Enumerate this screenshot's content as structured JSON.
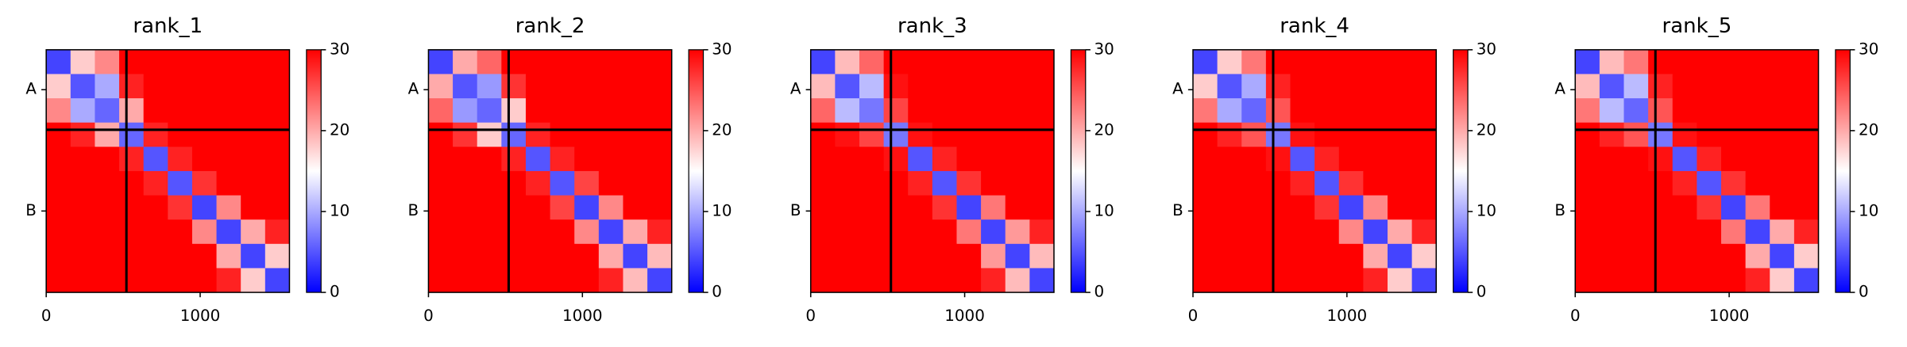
{
  "chart_data": [
    {
      "type": "heatmap",
      "title": "rank_1",
      "xlim": [
        0,
        1580
      ],
      "ylim": [
        0,
        1580
      ],
      "xticks": [
        0,
        1000
      ],
      "yticks": [
        {
          "value": 260,
          "label": "A"
        },
        {
          "value": 1050,
          "label": "B"
        }
      ],
      "boundaries": [
        521
      ],
      "colormap": [
        "#0000ff",
        "#ffffff",
        "#ff0000"
      ],
      "clim": [
        0,
        30
      ],
      "cticks": [
        0,
        10,
        20,
        30
      ],
      "matrix": [
        [
          4,
          18,
          22,
          30,
          30,
          30,
          30,
          30,
          30,
          30
        ],
        [
          18,
          5,
          10,
          28,
          30,
          30,
          30,
          30,
          30,
          30
        ],
        [
          22,
          10,
          6,
          20,
          30,
          30,
          30,
          30,
          30,
          30
        ],
        [
          30,
          28,
          20,
          6,
          28,
          30,
          30,
          30,
          30,
          30
        ],
        [
          30,
          30,
          30,
          28,
          5,
          28,
          30,
          30,
          30,
          30
        ],
        [
          30,
          30,
          30,
          30,
          28,
          5,
          27,
          30,
          30,
          30
        ],
        [
          30,
          30,
          30,
          30,
          30,
          27,
          4,
          22,
          30,
          30
        ],
        [
          30,
          30,
          30,
          30,
          30,
          30,
          22,
          4,
          20,
          28
        ],
        [
          30,
          30,
          30,
          30,
          30,
          30,
          30,
          20,
          4,
          18
        ],
        [
          30,
          30,
          30,
          30,
          30,
          30,
          30,
          28,
          18,
          4
        ]
      ]
    },
    {
      "type": "heatmap",
      "title": "rank_2",
      "xlim": [
        0,
        1580
      ],
      "ylim": [
        0,
        1580
      ],
      "xticks": [
        0,
        1000
      ],
      "yticks": [
        {
          "value": 260,
          "label": "A"
        },
        {
          "value": 1050,
          "label": "B"
        }
      ],
      "boundaries": [
        521
      ],
      "colormap": [
        "#0000ff",
        "#ffffff",
        "#ff0000"
      ],
      "clim": [
        0,
        30
      ],
      "cticks": [
        0,
        10,
        20,
        30
      ],
      "matrix": [
        [
          4,
          20,
          24,
          30,
          30,
          30,
          30,
          30,
          30,
          30
        ],
        [
          20,
          5,
          9,
          27,
          30,
          30,
          30,
          30,
          30,
          30
        ],
        [
          24,
          9,
          6,
          18,
          30,
          30,
          30,
          30,
          30,
          30
        ],
        [
          30,
          27,
          18,
          6,
          28,
          30,
          30,
          30,
          30,
          30
        ],
        [
          30,
          30,
          30,
          28,
          5,
          28,
          30,
          30,
          30,
          30
        ],
        [
          30,
          30,
          30,
          30,
          28,
          5,
          26,
          30,
          30,
          30
        ],
        [
          30,
          30,
          30,
          30,
          30,
          26,
          4,
          22,
          30,
          30
        ],
        [
          30,
          30,
          30,
          30,
          30,
          30,
          22,
          4,
          20,
          28
        ],
        [
          30,
          30,
          30,
          30,
          30,
          30,
          30,
          20,
          4,
          19
        ],
        [
          30,
          30,
          30,
          30,
          30,
          30,
          30,
          28,
          19,
          4
        ]
      ]
    },
    {
      "type": "heatmap",
      "title": "rank_3",
      "xlim": [
        0,
        1580
      ],
      "ylim": [
        0,
        1580
      ],
      "xticks": [
        0,
        1000
      ],
      "yticks": [
        {
          "value": 260,
          "label": "A"
        },
        {
          "value": 1050,
          "label": "B"
        }
      ],
      "boundaries": [
        521
      ],
      "colormap": [
        "#0000ff",
        "#ffffff",
        "#ff0000"
      ],
      "clim": [
        0,
        30
      ],
      "cticks": [
        0,
        10,
        20,
        30
      ],
      "matrix": [
        [
          4,
          19,
          24,
          30,
          30,
          30,
          30,
          30,
          30,
          30
        ],
        [
          19,
          5,
          11,
          29,
          30,
          30,
          30,
          30,
          30,
          30
        ],
        [
          24,
          11,
          7,
          26,
          30,
          30,
          30,
          30,
          30,
          30
        ],
        [
          30,
          29,
          26,
          7,
          29,
          30,
          30,
          30,
          30,
          30
        ],
        [
          30,
          30,
          30,
          29,
          5,
          28,
          30,
          30,
          30,
          30
        ],
        [
          30,
          30,
          30,
          30,
          28,
          5,
          27,
          30,
          30,
          30
        ],
        [
          30,
          30,
          30,
          30,
          30,
          27,
          4,
          23,
          30,
          30
        ],
        [
          30,
          30,
          30,
          30,
          30,
          30,
          23,
          4,
          21,
          28
        ],
        [
          30,
          30,
          30,
          30,
          30,
          30,
          30,
          21,
          4,
          19
        ],
        [
          30,
          30,
          30,
          30,
          30,
          30,
          30,
          28,
          19,
          4
        ]
      ]
    },
    {
      "type": "heatmap",
      "title": "rank_4",
      "xlim": [
        0,
        1580
      ],
      "ylim": [
        0,
        1580
      ],
      "xticks": [
        0,
        1000
      ],
      "yticks": [
        {
          "value": 260,
          "label": "A"
        },
        {
          "value": 1050,
          "label": "B"
        }
      ],
      "boundaries": [
        521
      ],
      "colormap": [
        "#0000ff",
        "#ffffff",
        "#ff0000"
      ],
      "clim": [
        0,
        30
      ],
      "cticks": [
        0,
        10,
        20,
        30
      ],
      "matrix": [
        [
          4,
          18,
          23,
          30,
          30,
          30,
          30,
          30,
          30,
          30
        ],
        [
          18,
          5,
          10,
          28,
          30,
          30,
          30,
          30,
          30,
          30
        ],
        [
          23,
          10,
          6,
          25,
          30,
          30,
          30,
          30,
          30,
          30
        ],
        [
          30,
          28,
          25,
          7,
          29,
          30,
          30,
          30,
          30,
          30
        ],
        [
          30,
          30,
          30,
          29,
          5,
          28,
          30,
          30,
          30,
          30
        ],
        [
          30,
          30,
          30,
          30,
          28,
          5,
          27,
          30,
          30,
          30
        ],
        [
          30,
          30,
          30,
          30,
          30,
          27,
          4,
          22,
          30,
          30
        ],
        [
          30,
          30,
          30,
          30,
          30,
          30,
          22,
          4,
          20,
          28
        ],
        [
          30,
          30,
          30,
          30,
          30,
          30,
          30,
          20,
          4,
          18
        ],
        [
          30,
          30,
          30,
          30,
          30,
          30,
          30,
          28,
          18,
          4
        ]
      ]
    },
    {
      "type": "heatmap",
      "title": "rank_5",
      "xlim": [
        0,
        1580
      ],
      "ylim": [
        0,
        1580
      ],
      "xticks": [
        0,
        1000
      ],
      "yticks": [
        {
          "value": 260,
          "label": "A"
        },
        {
          "value": 1050,
          "label": "B"
        }
      ],
      "boundaries": [
        521
      ],
      "colormap": [
        "#0000ff",
        "#ffffff",
        "#ff0000"
      ],
      "clim": [
        0,
        30
      ],
      "cticks": [
        0,
        10,
        20,
        30
      ],
      "matrix": [
        [
          4,
          19,
          23,
          30,
          30,
          30,
          30,
          30,
          30,
          30
        ],
        [
          19,
          5,
          11,
          28,
          30,
          30,
          30,
          30,
          30,
          30
        ],
        [
          23,
          11,
          6,
          25,
          30,
          30,
          30,
          30,
          30,
          30
        ],
        [
          30,
          28,
          25,
          7,
          29,
          30,
          30,
          30,
          30,
          30
        ],
        [
          30,
          30,
          30,
          29,
          5,
          28,
          30,
          30,
          30,
          30
        ],
        [
          30,
          30,
          30,
          30,
          28,
          5,
          27,
          30,
          30,
          30
        ],
        [
          30,
          30,
          30,
          30,
          30,
          27,
          4,
          23,
          30,
          30
        ],
        [
          30,
          30,
          30,
          30,
          30,
          30,
          23,
          4,
          20,
          28
        ],
        [
          30,
          30,
          30,
          30,
          30,
          30,
          30,
          20,
          4,
          18
        ],
        [
          30,
          30,
          30,
          30,
          30,
          30,
          30,
          28,
          18,
          4
        ]
      ]
    }
  ]
}
